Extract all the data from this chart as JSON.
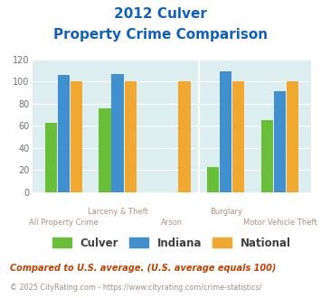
{
  "title_line1": "2012 Culver",
  "title_line2": "Property Crime Comparison",
  "categories": [
    "All Property Crime",
    "Larceny & Theft",
    "Arson",
    "Burglary",
    "Motor Vehicle Theft"
  ],
  "top_labels": [
    "",
    "Larceny & Theft",
    "",
    "Burglary",
    ""
  ],
  "bottom_labels": [
    "All Property Crime",
    "",
    "Arson",
    "",
    "Motor Vehicle Theft"
  ],
  "culver": [
    63,
    76,
    0,
    23,
    65
  ],
  "indiana": [
    106,
    107,
    0,
    109,
    91
  ],
  "national": [
    100,
    100,
    100,
    100,
    100
  ],
  "culver_color": "#6abf3a",
  "indiana_color": "#4090d0",
  "national_color": "#f0a830",
  "bg_color": "#ddeef0",
  "ylim": [
    0,
    120
  ],
  "yticks": [
    0,
    20,
    40,
    60,
    80,
    100,
    120
  ],
  "title_color": "#1060c0",
  "xlabel_color": "#b09080",
  "legend_labels": [
    "Culver",
    "Indiana",
    "National"
  ],
  "footnote1": "Compared to U.S. average. (U.S. average equals 100)",
  "footnote2": "© 2025 CityRating.com - https://www.cityrating.com/crime-statistics/",
  "footnote1_color": "#c04000",
  "footnote2_color": "#a09080",
  "bar_width": 0.22,
  "bar_gap": 0.015
}
